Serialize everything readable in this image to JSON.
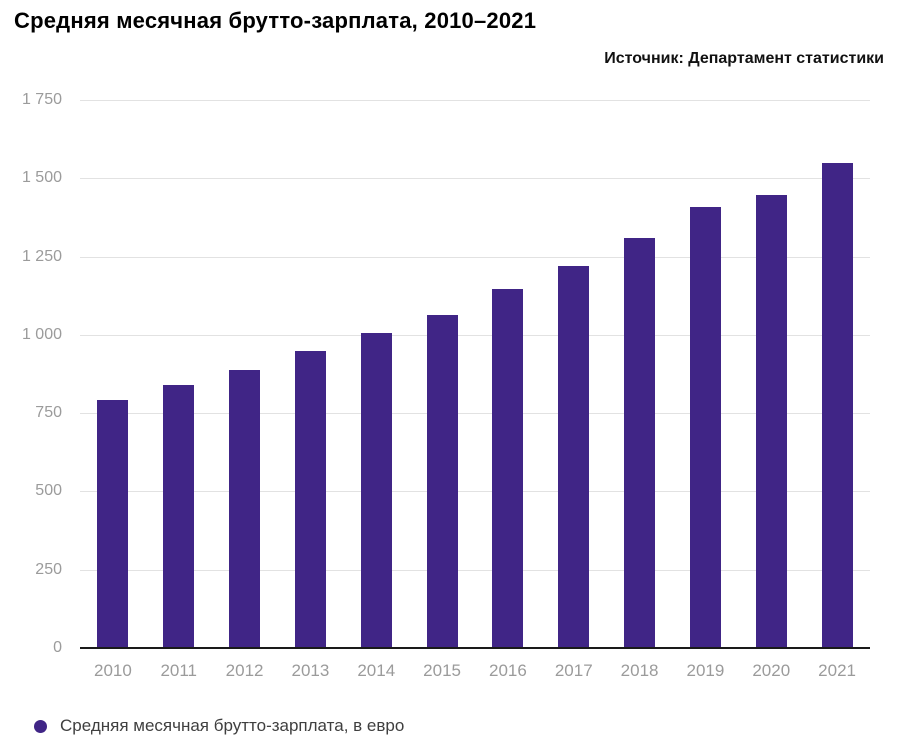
{
  "header": {
    "title": "Средняя месячная брутто-зарплата, 2010–2021",
    "source": "Источник: Департамент статистики"
  },
  "legend": {
    "label": "Средняя месячная брутто-зарплата, в евро"
  },
  "colors": {
    "bar": "#402586",
    "grid": "#e2e2e2",
    "axis_line": "#1a1a1a",
    "tick_label": "#9b9b9b",
    "legend_text": "#3f3f3f",
    "title_text": "#000000",
    "source_text": "#111111"
  },
  "chart_data": {
    "type": "bar",
    "title": "Средняя месячная брутто-зарплата, 2010–2021",
    "subtitle": "Источник: Департамент статистики",
    "categories": [
      "2010",
      "2011",
      "2012",
      "2013",
      "2014",
      "2015",
      "2016",
      "2017",
      "2018",
      "2019",
      "2020",
      "2021"
    ],
    "values": [
      792,
      839,
      887,
      949,
      1005,
      1065,
      1146,
      1221,
      1310,
      1407,
      1448,
      1548
    ],
    "series_name": "Средняя месячная брутто-зарплата, в евро",
    "unit": "евро",
    "xlabel": "",
    "ylabel": "",
    "ylim": [
      0,
      1750
    ],
    "ytick_values": [
      0,
      250,
      500,
      750,
      1000,
      1250,
      1500,
      1750
    ],
    "ytick_labels": [
      "0",
      "250",
      "500",
      "750",
      "1 000",
      "1 250",
      "1 500",
      "1 750"
    ],
    "grid": "horizontal",
    "legend_position": "bottom-left",
    "bar_color": "#402586"
  }
}
